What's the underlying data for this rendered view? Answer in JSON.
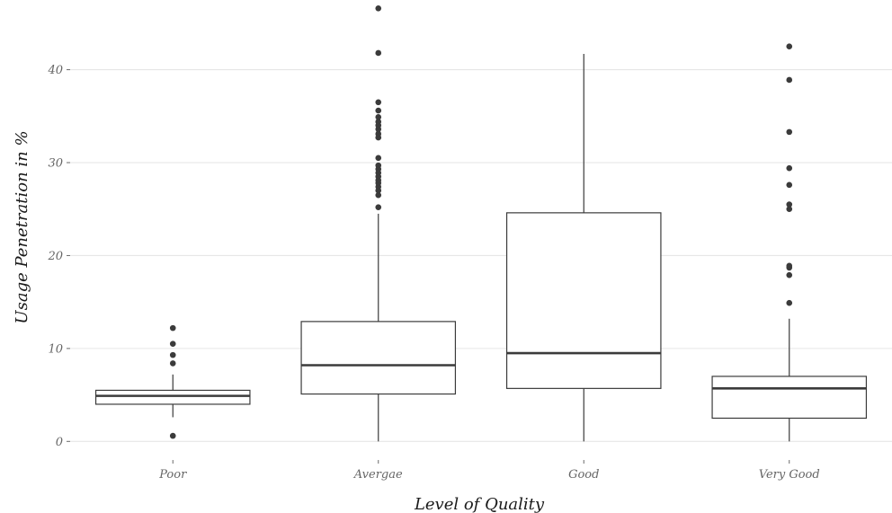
{
  "chart_data": {
    "type": "box",
    "xlabel": "Level of Quality",
    "ylabel": "Usage Penetration in %",
    "ylim": [
      -2,
      47.5
    ],
    "yticks": [
      0,
      10,
      20,
      30,
      40
    ],
    "grid": true,
    "categories": [
      "Poor",
      "Avergae",
      "Good",
      "Very Good"
    ],
    "boxes": [
      {
        "category": "Poor",
        "whisker_low": 2.6,
        "q1": 4.0,
        "median": 4.9,
        "q3": 5.5,
        "whisker_high": 7.2,
        "outliers": [
          0.6,
          8.4,
          9.3,
          10.5,
          12.2
        ]
      },
      {
        "category": "Avergae",
        "whisker_low": 0,
        "q1": 5.1,
        "median": 8.2,
        "q3": 12.9,
        "whisker_high": 24.5,
        "outliers": [
          25.2,
          26.5,
          27.0,
          27.4,
          27.8,
          28.1,
          28.5,
          28.9,
          29.3,
          29.7,
          30.5,
          32.7,
          33.1,
          33.6,
          34.0,
          34.4,
          34.9,
          35.6,
          36.5,
          41.8,
          46.6
        ]
      },
      {
        "category": "Good",
        "whisker_low": 0,
        "q1": 5.7,
        "median": 9.5,
        "q3": 24.6,
        "whisker_high": 41.7,
        "outliers": []
      },
      {
        "category": "Very Good",
        "whisker_low": 0,
        "q1": 2.5,
        "median": 5.7,
        "q3": 7.0,
        "whisker_high": 13.2,
        "outliers": [
          14.9,
          17.9,
          18.7,
          18.9,
          25.0,
          25.5,
          27.6,
          29.4,
          33.3,
          38.9,
          42.5
        ]
      }
    ]
  }
}
